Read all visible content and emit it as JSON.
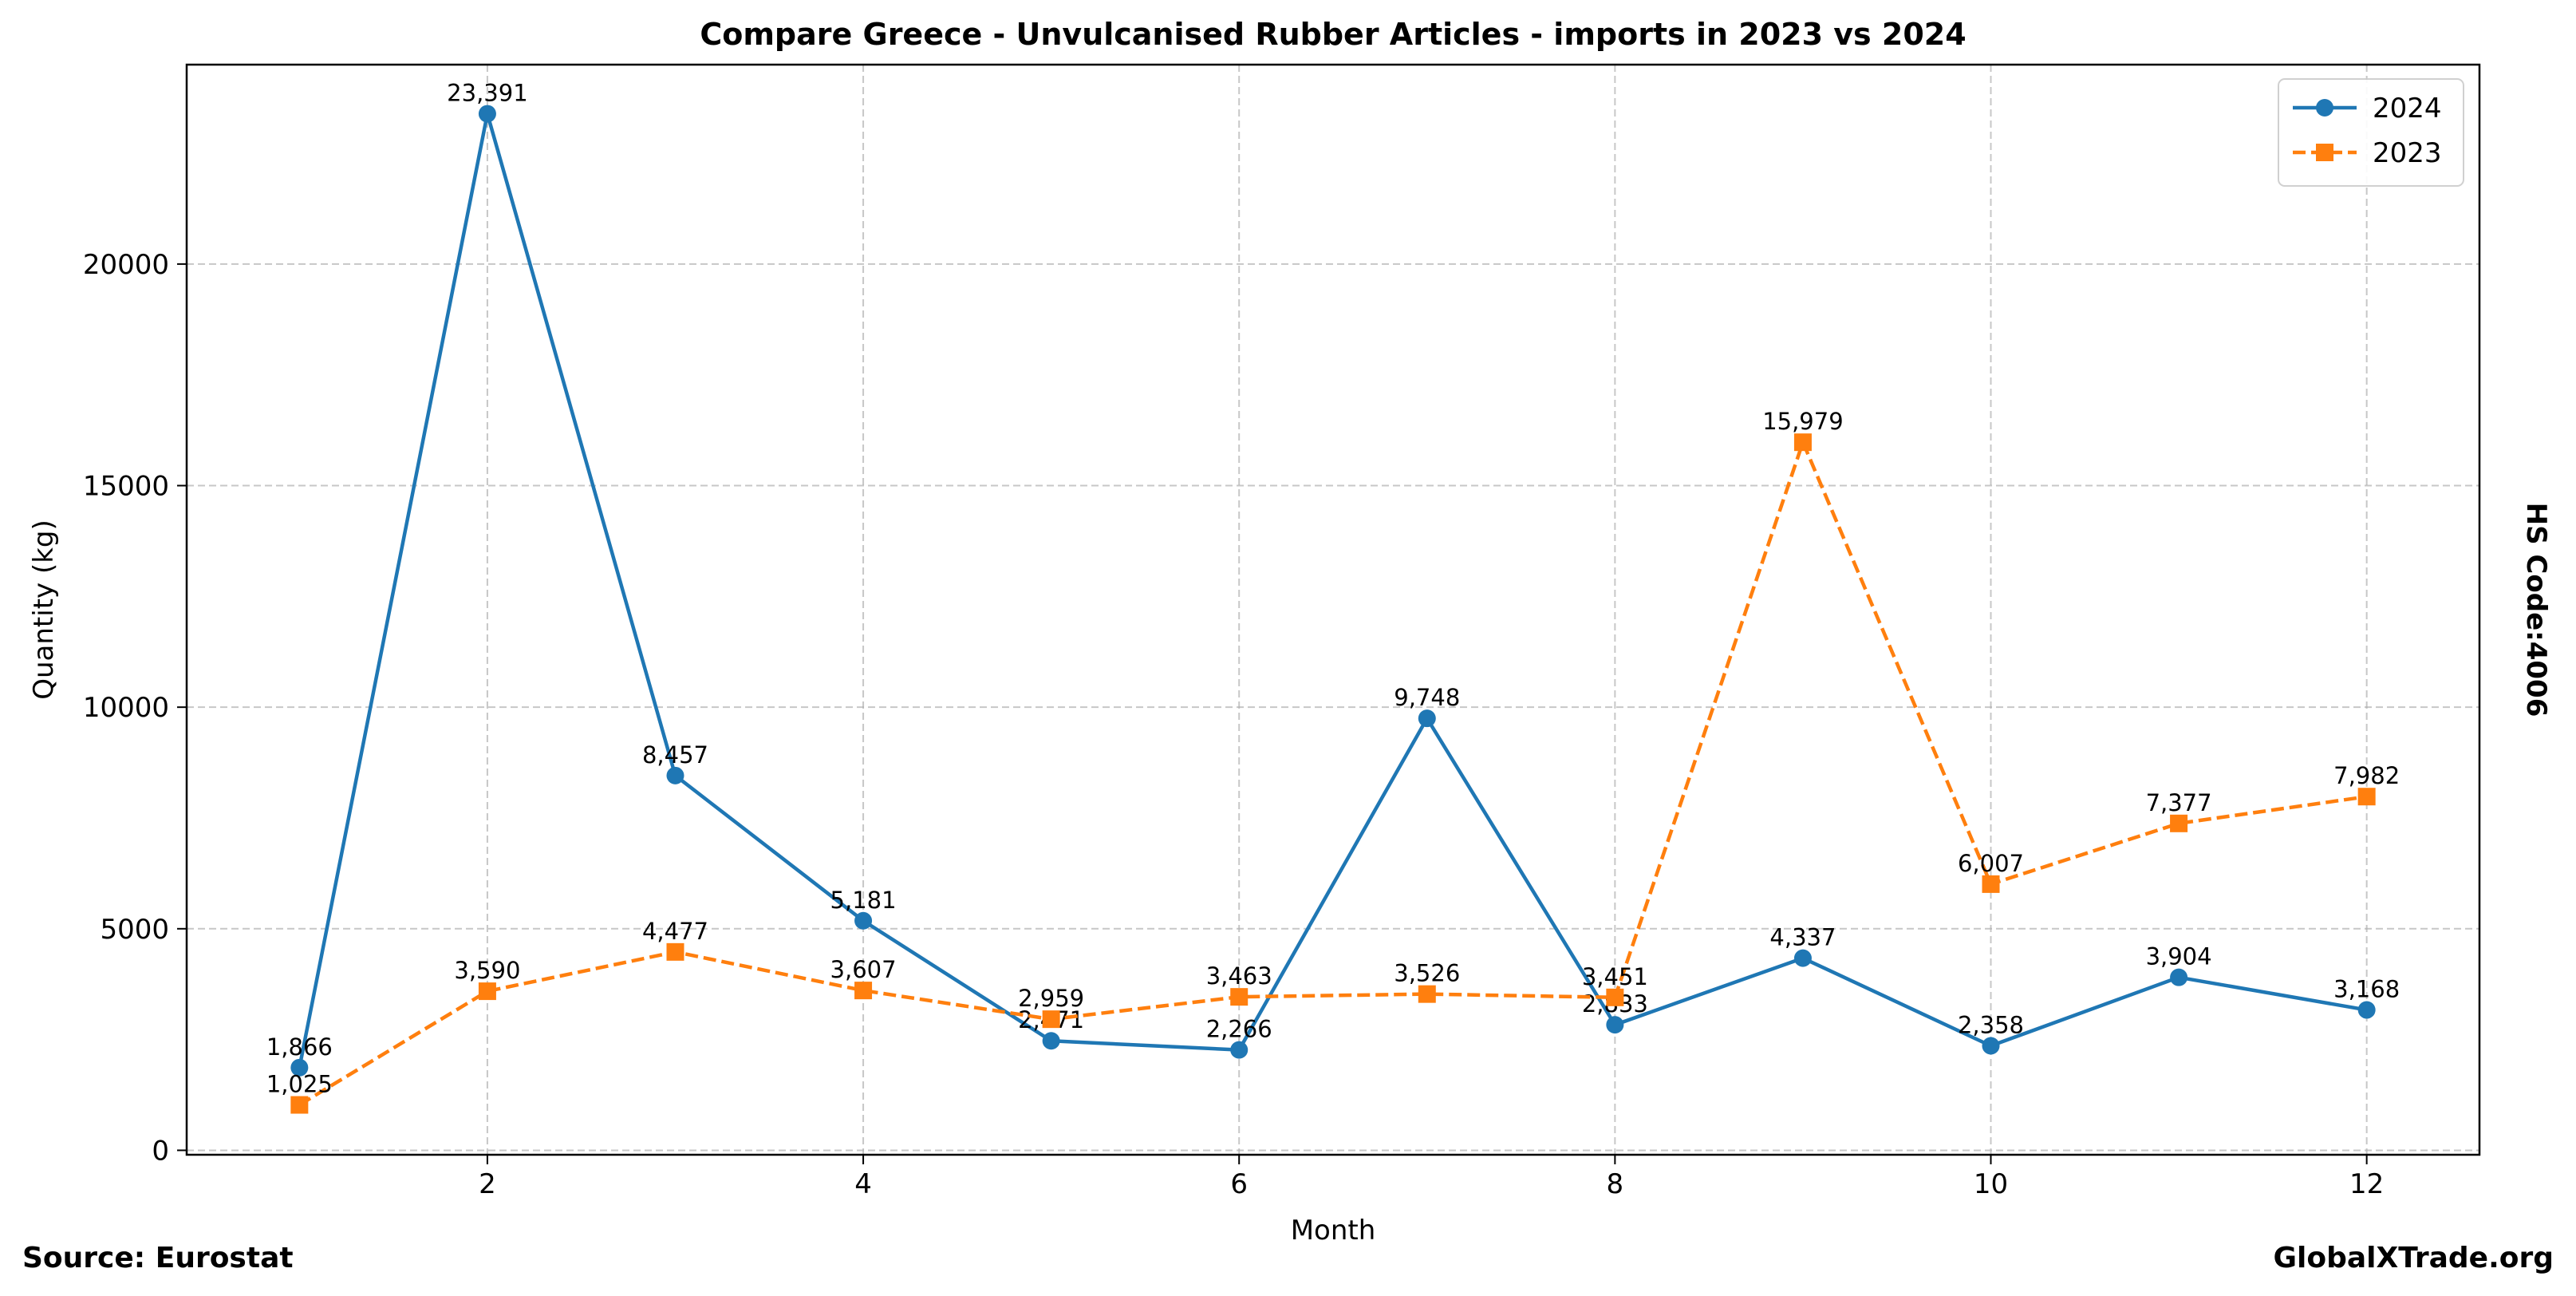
{
  "chart_data": {
    "type": "line",
    "title": "Compare Greece - Unvulcanised Rubber Articles - imports in 2023 vs 2024",
    "xlabel": "Month",
    "ylabel": "Quantity (kg)",
    "x": [
      1,
      2,
      3,
      4,
      5,
      6,
      7,
      8,
      9,
      10,
      11,
      12
    ],
    "xlim": [
      0.4,
      12.6
    ],
    "ylim": [
      -100,
      24500
    ],
    "xticks": [
      2,
      4,
      6,
      8,
      10,
      12
    ],
    "yticks": [
      0,
      5000,
      10000,
      15000,
      20000
    ],
    "grid": true,
    "legend_position": "top-right",
    "series": [
      {
        "name": "2024",
        "color": "#1f77b4",
        "marker": "circle",
        "linestyle": "solid",
        "values": [
          1866,
          23391,
          8457,
          5181,
          2471,
          2266,
          9748,
          2833,
          4337,
          2358,
          3904,
          3168
        ],
        "labels": [
          "1,866",
          "23,391",
          "8,457",
          "5,181",
          "2,471",
          "2,266",
          "9,748",
          "2,833",
          "4,337",
          "2,358",
          "3,904",
          "3,168"
        ]
      },
      {
        "name": "2023",
        "color": "#ff7f0e",
        "marker": "square",
        "linestyle": "dashed",
        "values": [
          1025,
          3590,
          4477,
          3607,
          2959,
          3463,
          3526,
          3451,
          15979,
          6007,
          7377,
          7982
        ],
        "labels": [
          "1,025",
          "3,590",
          "4,477",
          "3,607",
          "2,959",
          "3,463",
          "3,526",
          "3,451",
          "15,979",
          "6,007",
          "7,377",
          "7,982"
        ]
      }
    ],
    "side_label": "HS Code:4006"
  },
  "footer": {
    "source": "Source: Eurostat",
    "site": "GlobalXTrade.org"
  }
}
